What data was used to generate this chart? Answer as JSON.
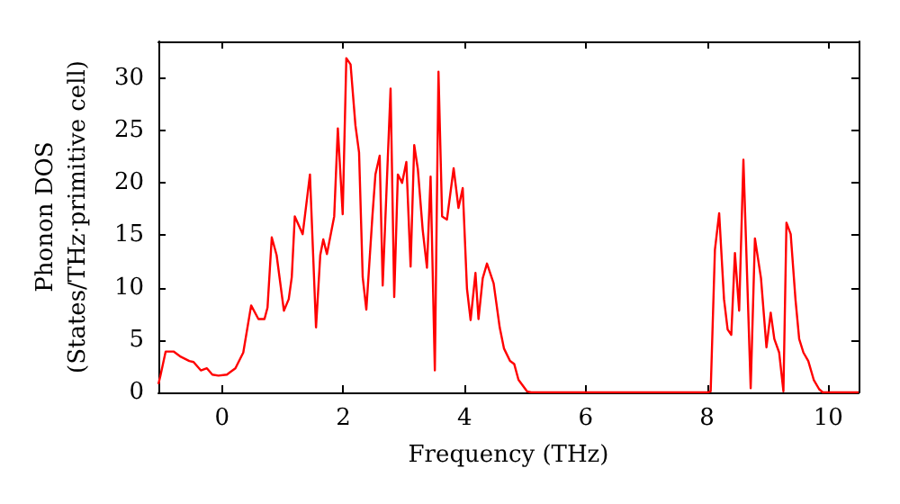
{
  "chart_data": {
    "type": "line",
    "xlabel": "Frequency (THz)",
    "ylabel": "Phonon DOS\n(States/THz·primitive cell)",
    "xlim": [
      -1.05,
      10.5
    ],
    "ylim": [
      0,
      33.5
    ],
    "xticks": [
      0,
      2,
      4,
      6,
      8,
      10
    ],
    "yticks": [
      0,
      5,
      10,
      15,
      20,
      25,
      30
    ],
    "grid": false,
    "marker": "none",
    "line_style": "solid",
    "series": [
      {
        "color": "#ff0000",
        "x": [
          -1.05,
          -1.02,
          -0.93,
          -0.8,
          -0.68,
          -0.54,
          -0.47,
          -0.35,
          -0.25,
          -0.16,
          -0.06,
          0.08,
          0.22,
          0.35,
          0.48,
          0.6,
          0.7,
          0.75,
          0.82,
          0.9,
          1.02,
          1.1,
          1.15,
          1.2,
          1.33,
          1.45,
          1.55,
          1.62,
          1.67,
          1.73,
          1.85,
          1.91,
          1.99,
          2.05,
          2.12,
          2.2,
          2.26,
          2.32,
          2.38,
          2.48,
          2.53,
          2.6,
          2.65,
          2.78,
          2.84,
          2.9,
          2.97,
          3.04,
          3.11,
          3.17,
          3.23,
          3.31,
          3.38,
          3.44,
          3.51,
          3.57,
          3.63,
          3.71,
          3.82,
          3.9,
          3.97,
          4.04,
          4.1,
          4.18,
          4.23,
          4.3,
          4.37,
          4.48,
          4.58,
          4.65,
          4.75,
          4.82,
          4.89,
          5.03,
          5.1,
          8.01,
          8.06,
          8.13,
          8.2,
          8.28,
          8.34,
          8.4,
          8.46,
          8.53,
          8.6,
          8.72,
          8.79,
          8.89,
          8.98,
          9.05,
          9.11,
          9.19,
          9.26,
          9.31,
          9.38,
          9.46,
          9.52,
          9.59,
          9.67,
          9.76,
          9.85,
          9.91,
          10.5
        ],
        "values": [
          0.8,
          1.5,
          3.9,
          3.9,
          3.4,
          3.0,
          2.9,
          2.1,
          2.3,
          1.7,
          1.6,
          1.7,
          2.3,
          3.8,
          8.3,
          7.0,
          7.0,
          8.1,
          14.8,
          13.1,
          7.8,
          8.9,
          11,
          16.8,
          15.1,
          20.8,
          6.2,
          13.1,
          14.6,
          13.2,
          16.8,
          25.2,
          17.0,
          31.9,
          31.3,
          25.5,
          22.9,
          11,
          7.9,
          16.8,
          20.8,
          22.6,
          10.2,
          29.0,
          9.1,
          20.8,
          20,
          22,
          12,
          23.6,
          21.3,
          15.5,
          11.9,
          20.6,
          2.1,
          30.6,
          16.8,
          16.5,
          21.4,
          17.6,
          19.5,
          9.9,
          6.9,
          11.4,
          7.0,
          10.9,
          12.3,
          10.4,
          6.2,
          4.2,
          3.0,
          2.7,
          1.2,
          0.1,
          0,
          0,
          0.1,
          13.6,
          17.1,
          8.9,
          6.0,
          5.5,
          13.3,
          7.8,
          22.2,
          0.4,
          14.7,
          10.9,
          4.3,
          7.6,
          5.1,
          3.8,
          0.1,
          16.2,
          15.1,
          8.8,
          5.1,
          3.8,
          3.0,
          1.2,
          0.3,
          0,
          0
        ]
      }
    ]
  }
}
